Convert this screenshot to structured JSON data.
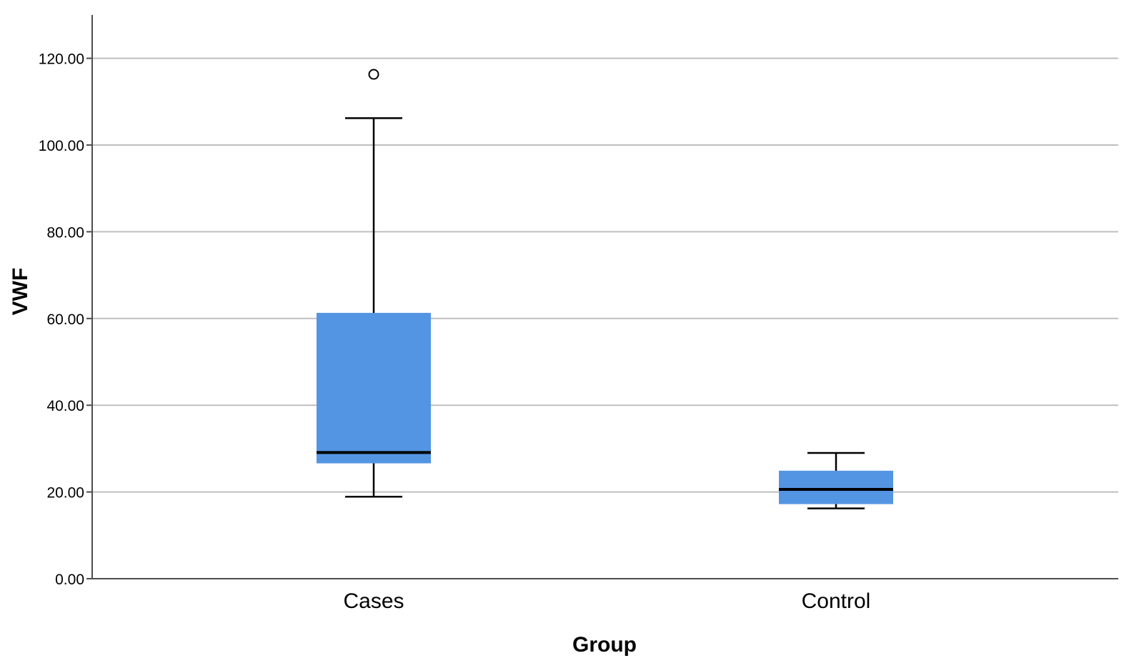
{
  "chart_data": {
    "type": "boxplot",
    "xlabel": "Group",
    "ylabel": "VWF",
    "categories": [
      "Cases",
      "Control"
    ],
    "ylim": [
      0,
      130
    ],
    "yticks": [
      0,
      20,
      40,
      60,
      80,
      100,
      120
    ],
    "ytick_labels": [
      "0.00",
      "20.00",
      "40.00",
      "60.00",
      "80.00",
      "100.00",
      "120.00"
    ],
    "grid": "horizontal",
    "boxes": [
      {
        "category": "Cases",
        "whisker_low": 18.9,
        "q1": 26.6,
        "median": 29.1,
        "q3": 61.3,
        "whisker_high": 106.2,
        "outliers": [
          116.3
        ]
      },
      {
        "category": "Control",
        "whisker_low": 16.2,
        "q1": 17.2,
        "median": 20.6,
        "q3": 24.9,
        "whisker_high": 29.0,
        "outliers": []
      }
    ],
    "colors": {
      "box_fill": "#5495e3",
      "grid": "#bfbfbf",
      "axis": "#4d4d4d",
      "median": "#000000",
      "whisker": "#000000"
    }
  }
}
